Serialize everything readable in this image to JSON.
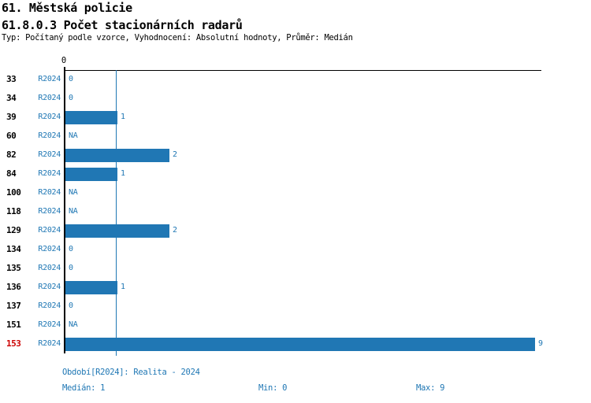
{
  "header": {
    "title_line1": "61. Městská policie",
    "title_line2": "61.8.0.3 Počet stacionárních radarů",
    "subtitle": "Typ: Počítaný podle vzorce, Vyhodnocení: Absolutní hodnoty, Průměr: Medián"
  },
  "chart_data": {
    "type": "bar",
    "orientation": "horizontal",
    "title": "61.8.0.3 Počet stacionárních radarů",
    "categories": [
      "33",
      "34",
      "39",
      "60",
      "82",
      "84",
      "100",
      "118",
      "129",
      "134",
      "135",
      "136",
      "137",
      "151",
      "153"
    ],
    "series": [
      {
        "name": "R2024",
        "values": [
          0,
          0,
          1,
          null,
          2,
          1,
          null,
          null,
          2,
          0,
          0,
          1,
          0,
          null,
          9
        ]
      }
    ],
    "value_labels": [
      "0",
      "0",
      "1",
      "NA",
      "2",
      "1",
      "NA",
      "NA",
      "2",
      "0",
      "0",
      "1",
      "0",
      "NA",
      "9"
    ],
    "period_label": "R2024",
    "highlighted_category": "153",
    "x_axis": {
      "tick_labels": [
        "0"
      ],
      "min": 0,
      "max": 9.1,
      "grid": false
    },
    "median_reference_line": 1,
    "legend_position": "bottom",
    "colors": {
      "bar_blue": "#2077b4",
      "text_blue": "#1f77b4",
      "highlight_red": "#cc0000",
      "axis_black": "#000000",
      "row_label_black": "#000000"
    }
  },
  "footer": {
    "period_line": "Období[R2024]: Realita - 2024",
    "median": "Medián: 1",
    "min": "Min: 0",
    "max": "Max: 9"
  }
}
